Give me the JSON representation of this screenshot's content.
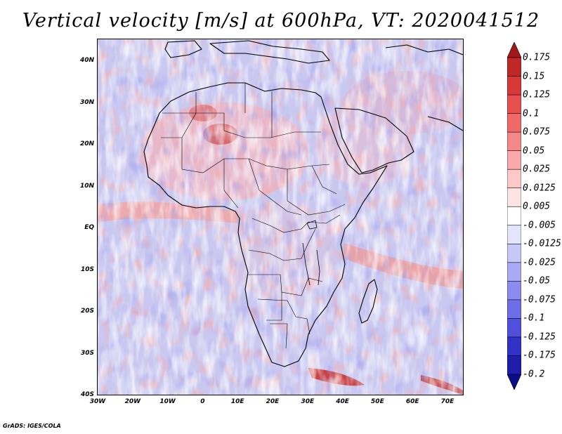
{
  "title": "Vertical velocity [m/s] at 600hPa, VT: 2020041512",
  "footer": "GrADS: IGES/COLA",
  "map": {
    "lat_labels": [
      "40N",
      "30N",
      "20N",
      "10N",
      "EQ",
      "10S",
      "20S",
      "30S",
      "40S"
    ],
    "lon_labels": [
      "30W",
      "20W",
      "10W",
      "0",
      "10E",
      "20E",
      "30E",
      "40E",
      "50E",
      "60E",
      "70E"
    ],
    "background_color": "#c9c8f0",
    "border_color": "#000000"
  },
  "colorbar": {
    "labels": [
      "0.175",
      "0.15",
      "0.125",
      "0.1",
      "0.075",
      "0.05",
      "0.025",
      "0.0125",
      "0.005",
      "-0.005",
      "-0.0125",
      "-0.025",
      "-0.05",
      "-0.075",
      "-0.1",
      "-0.125",
      "-0.175",
      "-0.2"
    ],
    "colors": [
      "#a01818",
      "#c02828",
      "#d83838",
      "#e85050",
      "#f06868",
      "#f48888",
      "#f8a8a8",
      "#fcc8c8",
      "#fde4e4",
      "#ffffff",
      "#e4e4fc",
      "#c8c8f8",
      "#aaaaf4",
      "#8c8cf0",
      "#6e6ee8",
      "#5050dc",
      "#3232c8",
      "#1e1eaa",
      "#0c0c88"
    ]
  }
}
